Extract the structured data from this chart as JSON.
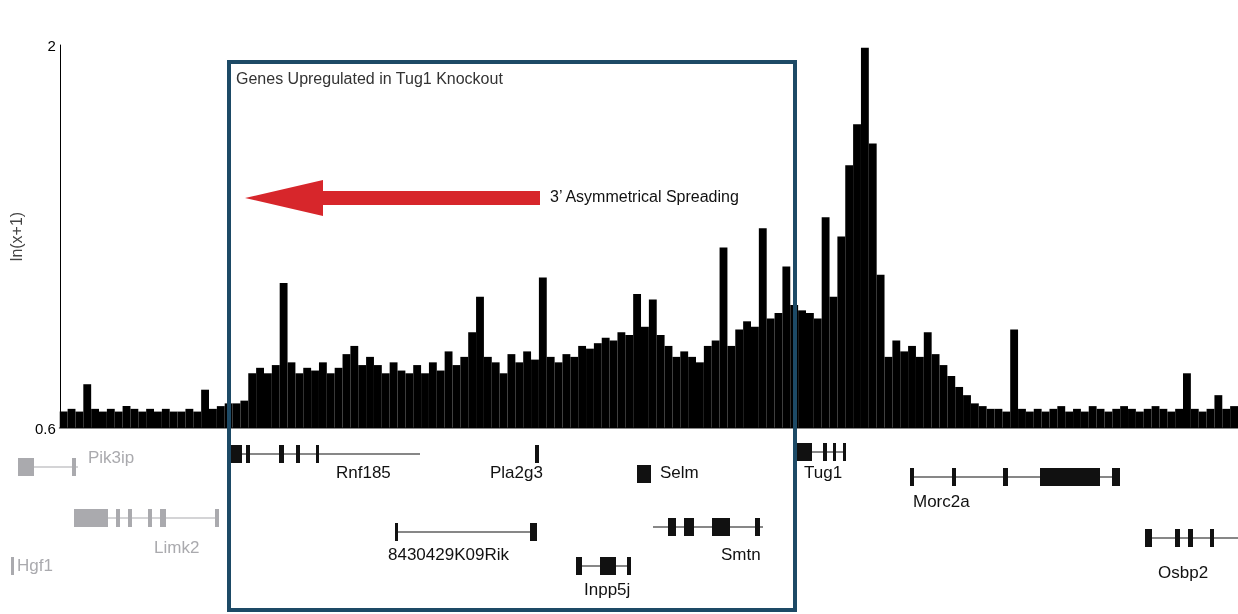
{
  "chart_data": {
    "type": "bar",
    "ylabel": "ln(x+1)",
    "color": "#000000",
    "ylim": [
      0.6,
      2
    ],
    "yticks": [
      0.6,
      2
    ],
    "categories": [
      null,
      null,
      null,
      null,
      null,
      null,
      null,
      null,
      null,
      null,
      null,
      null,
      null,
      null,
      null,
      null,
      null,
      null,
      null,
      null,
      null,
      null,
      null,
      null,
      null,
      null,
      null,
      null,
      null,
      null,
      null,
      null,
      null,
      null,
      null,
      null,
      null,
      null,
      null,
      null,
      null,
      null,
      null,
      null,
      null,
      null,
      null,
      null,
      null,
      null,
      null,
      null,
      null,
      null,
      null,
      null,
      null,
      null,
      null,
      null,
      null,
      null,
      null,
      null,
      null,
      null,
      null,
      null,
      null,
      null,
      null,
      null,
      null,
      null,
      null,
      null,
      null,
      null,
      null,
      null,
      null,
      null,
      null,
      null,
      null,
      null,
      null,
      null,
      null,
      null,
      null,
      null,
      null,
      null,
      null,
      null,
      null,
      null,
      null,
      null,
      null,
      null,
      null,
      null,
      null,
      null,
      null,
      null,
      null,
      null,
      null,
      null,
      null,
      null,
      null,
      null,
      null,
      null,
      null,
      null,
      null,
      null,
      null,
      null,
      null,
      null,
      null,
      null,
      null,
      null,
      null,
      null,
      null,
      null,
      null,
      null,
      null,
      null,
      null,
      null,
      null,
      null,
      null,
      null,
      null,
      null,
      null,
      null,
      null,
      null
    ],
    "values": [
      0.66,
      0.67,
      0.66,
      0.76,
      0.67,
      0.66,
      0.67,
      0.66,
      0.68,
      0.67,
      0.66,
      0.67,
      0.66,
      0.67,
      0.66,
      0.66,
      0.67,
      0.66,
      0.74,
      0.67,
      0.68,
      0.69,
      0.69,
      0.7,
      0.8,
      0.82,
      0.8,
      0.83,
      1.13,
      0.84,
      0.8,
      0.82,
      0.81,
      0.84,
      0.8,
      0.82,
      0.87,
      0.9,
      0.83,
      0.86,
      0.83,
      0.8,
      0.84,
      0.81,
      0.8,
      0.83,
      0.8,
      0.84,
      0.81,
      0.88,
      0.83,
      0.86,
      0.95,
      1.08,
      0.86,
      0.84,
      0.8,
      0.87,
      0.84,
      0.88,
      0.85,
      1.15,
      0.86,
      0.84,
      0.87,
      0.86,
      0.9,
      0.89,
      0.91,
      0.93,
      0.92,
      0.95,
      0.94,
      1.09,
      0.97,
      1.07,
      0.94,
      0.9,
      0.86,
      0.88,
      0.86,
      0.84,
      0.9,
      0.92,
      1.26,
      0.9,
      0.96,
      0.99,
      0.97,
      1.33,
      1.0,
      1.02,
      1.19,
      1.05,
      1.03,
      1.02,
      1.0,
      1.37,
      1.08,
      1.3,
      1.56,
      1.71,
      1.99,
      1.64,
      1.16,
      0.86,
      0.92,
      0.88,
      0.9,
      0.86,
      0.95,
      0.87,
      0.83,
      0.79,
      0.75,
      0.72,
      0.69,
      0.68,
      0.67,
      0.67,
      0.66,
      0.96,
      0.67,
      0.66,
      0.67,
      0.66,
      0.67,
      0.68,
      0.66,
      0.67,
      0.66,
      0.68,
      0.67,
      0.66,
      0.67,
      0.68,
      0.67,
      0.66,
      0.67,
      0.68,
      0.67,
      0.66,
      0.67,
      0.8,
      0.67,
      0.66,
      0.67,
      0.72,
      0.67,
      0.68
    ],
    "annotations": [
      "Genes Upregulated in Tug1 Knockout",
      "3’ Asymmetrical Spreading",
      "Pik3ip",
      "Limk2",
      "Hgf1",
      "Rnf185",
      "Pla2g3",
      "8430429K09Rik",
      "Inpp5j",
      "Selm",
      "Smtn",
      "Tug1",
      "Morc2a",
      "Osbp2"
    ]
  }
}
